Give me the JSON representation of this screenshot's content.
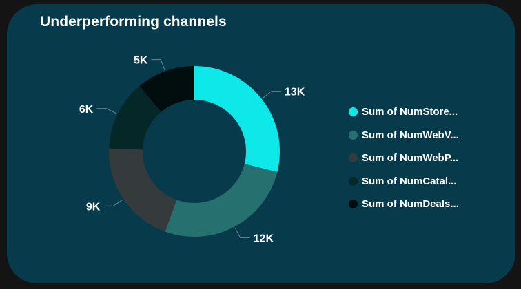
{
  "card": {
    "title": "Underperforming channels"
  },
  "chart_data": {
    "type": "pie",
    "donut": true,
    "title": "Underperforming channels",
    "legend_position": "right",
    "series": [
      {
        "name": "Sum of NumStore...",
        "value": 13,
        "label": "13K",
        "color": "#0fe8e8"
      },
      {
        "name": "Sum of NumWebV...",
        "value": 12,
        "label": "12K",
        "color": "#277070"
      },
      {
        "name": "Sum of NumWebP...",
        "value": 9,
        "label": "9K",
        "color": "#353b3d"
      },
      {
        "name": "Sum of NumCatal...",
        "value": 6,
        "label": "6K",
        "color": "#052728"
      },
      {
        "name": "Sum of NumDeals...",
        "value": 5,
        "label": "5K",
        "color": "#020d0d"
      }
    ]
  }
}
